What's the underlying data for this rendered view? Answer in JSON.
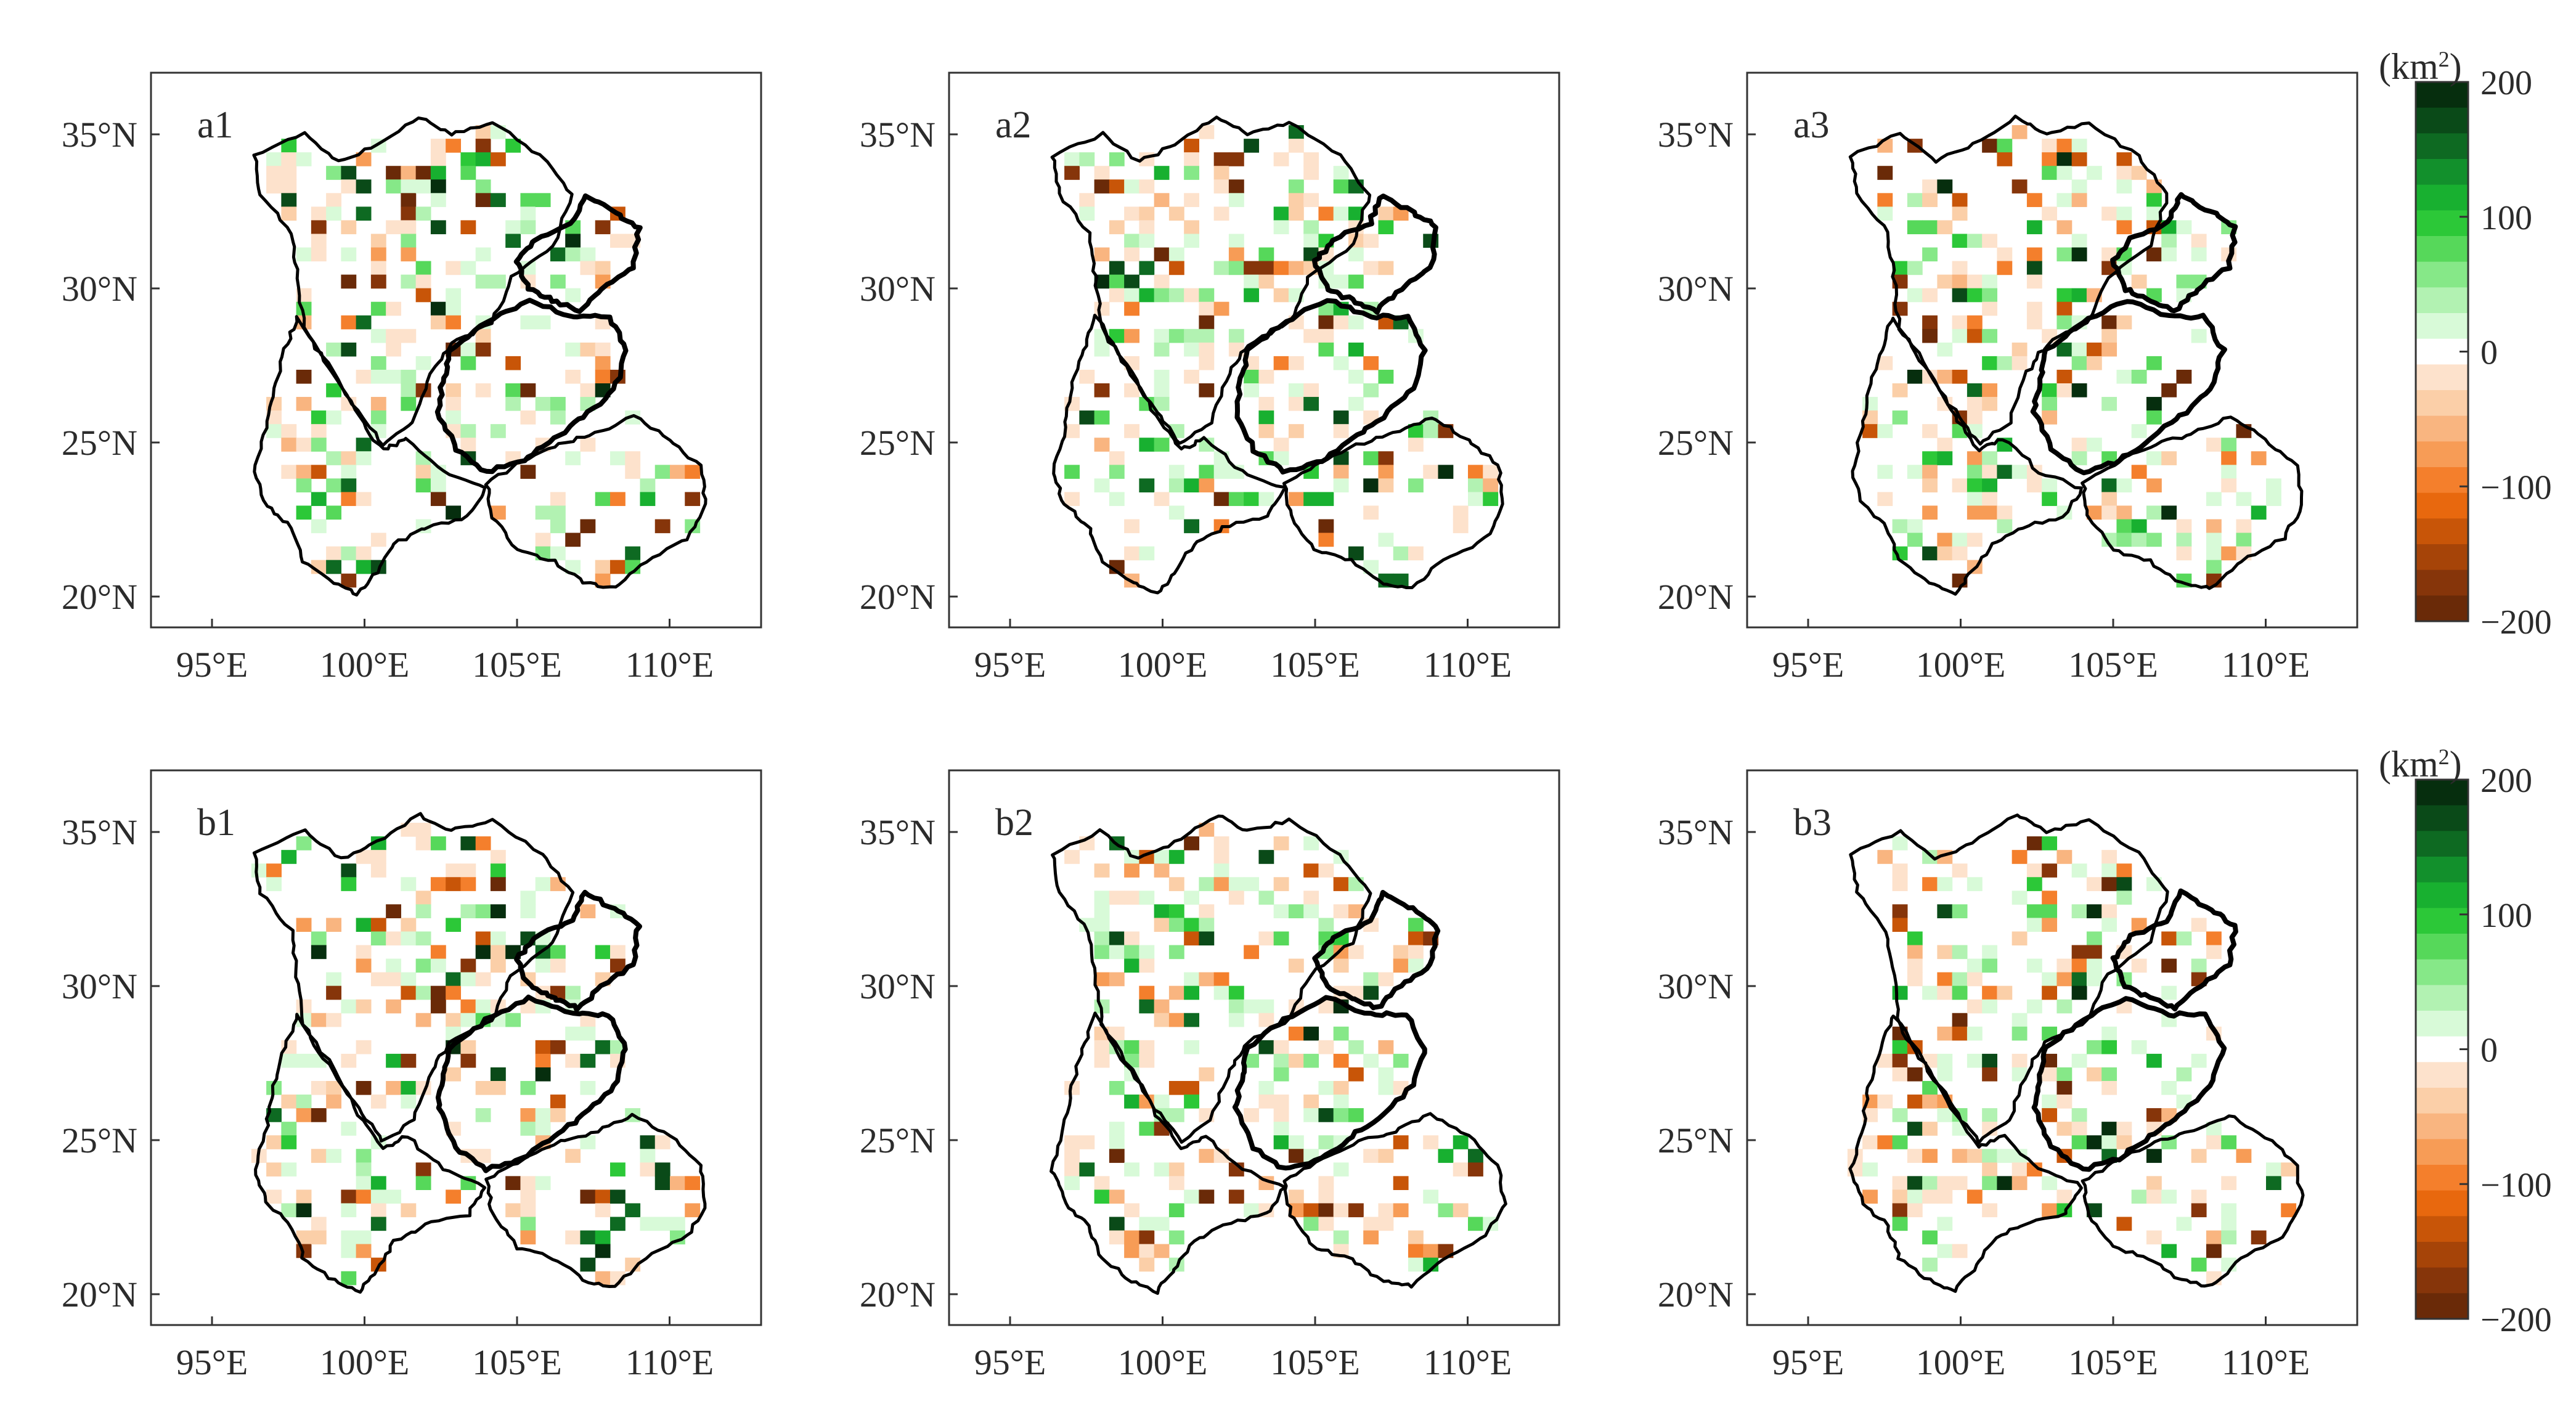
{
  "figure": {
    "panels": [
      {
        "label": "a1",
        "row": 0,
        "col": 0,
        "seed": 11
      },
      {
        "label": "a2",
        "row": 0,
        "col": 1,
        "seed": 23
      },
      {
        "label": "a3",
        "row": 0,
        "col": 2,
        "seed": 37
      },
      {
        "label": "b1",
        "row": 1,
        "col": 0,
        "seed": 41
      },
      {
        "label": "b2",
        "row": 1,
        "col": 1,
        "seed": 53
      },
      {
        "label": "b3",
        "row": 1,
        "col": 2,
        "seed": 67
      }
    ],
    "lat_ticks": [
      "20°N",
      "25°N",
      "30°N",
      "35°N"
    ],
    "lat_values": [
      20,
      25,
      30,
      35
    ],
    "lon_ticks": [
      "95°E",
      "100°E",
      "105°E",
      "110°E"
    ],
    "lon_values": [
      95,
      100,
      105,
      110
    ],
    "extent": {
      "lon_min": 93,
      "lon_max": 113,
      "lat_min": 19,
      "lat_max": 37
    },
    "colorbar": {
      "unit_label": "(km",
      "unit_sup": "2",
      "unit_close": ")",
      "tick_labels": [
        "200",
        "100",
        "0",
        "−100",
        "−200"
      ],
      "tick_values": [
        200,
        100,
        0,
        -100,
        -200
      ],
      "range": [
        -200,
        200
      ],
      "colors_top_to_bottom": [
        "#062e0e",
        "#0a4a18",
        "#0e6a22",
        "#12902c",
        "#18b030",
        "#2cc838",
        "#56d85a",
        "#86e888",
        "#b2f2b2",
        "#d8fad8",
        "#ffffff",
        "#fde2cc",
        "#fbcfa8",
        "#f9b580",
        "#f79c56",
        "#f47f2c",
        "#e8680e",
        "#c85508",
        "#a64408",
        "#86350a",
        "#6a2a08"
      ]
    },
    "colors": {
      "positive_max": "#062e0e",
      "negative_max": "#6a2a08",
      "zero": "#ffffff",
      "border": "#000000"
    }
  }
}
